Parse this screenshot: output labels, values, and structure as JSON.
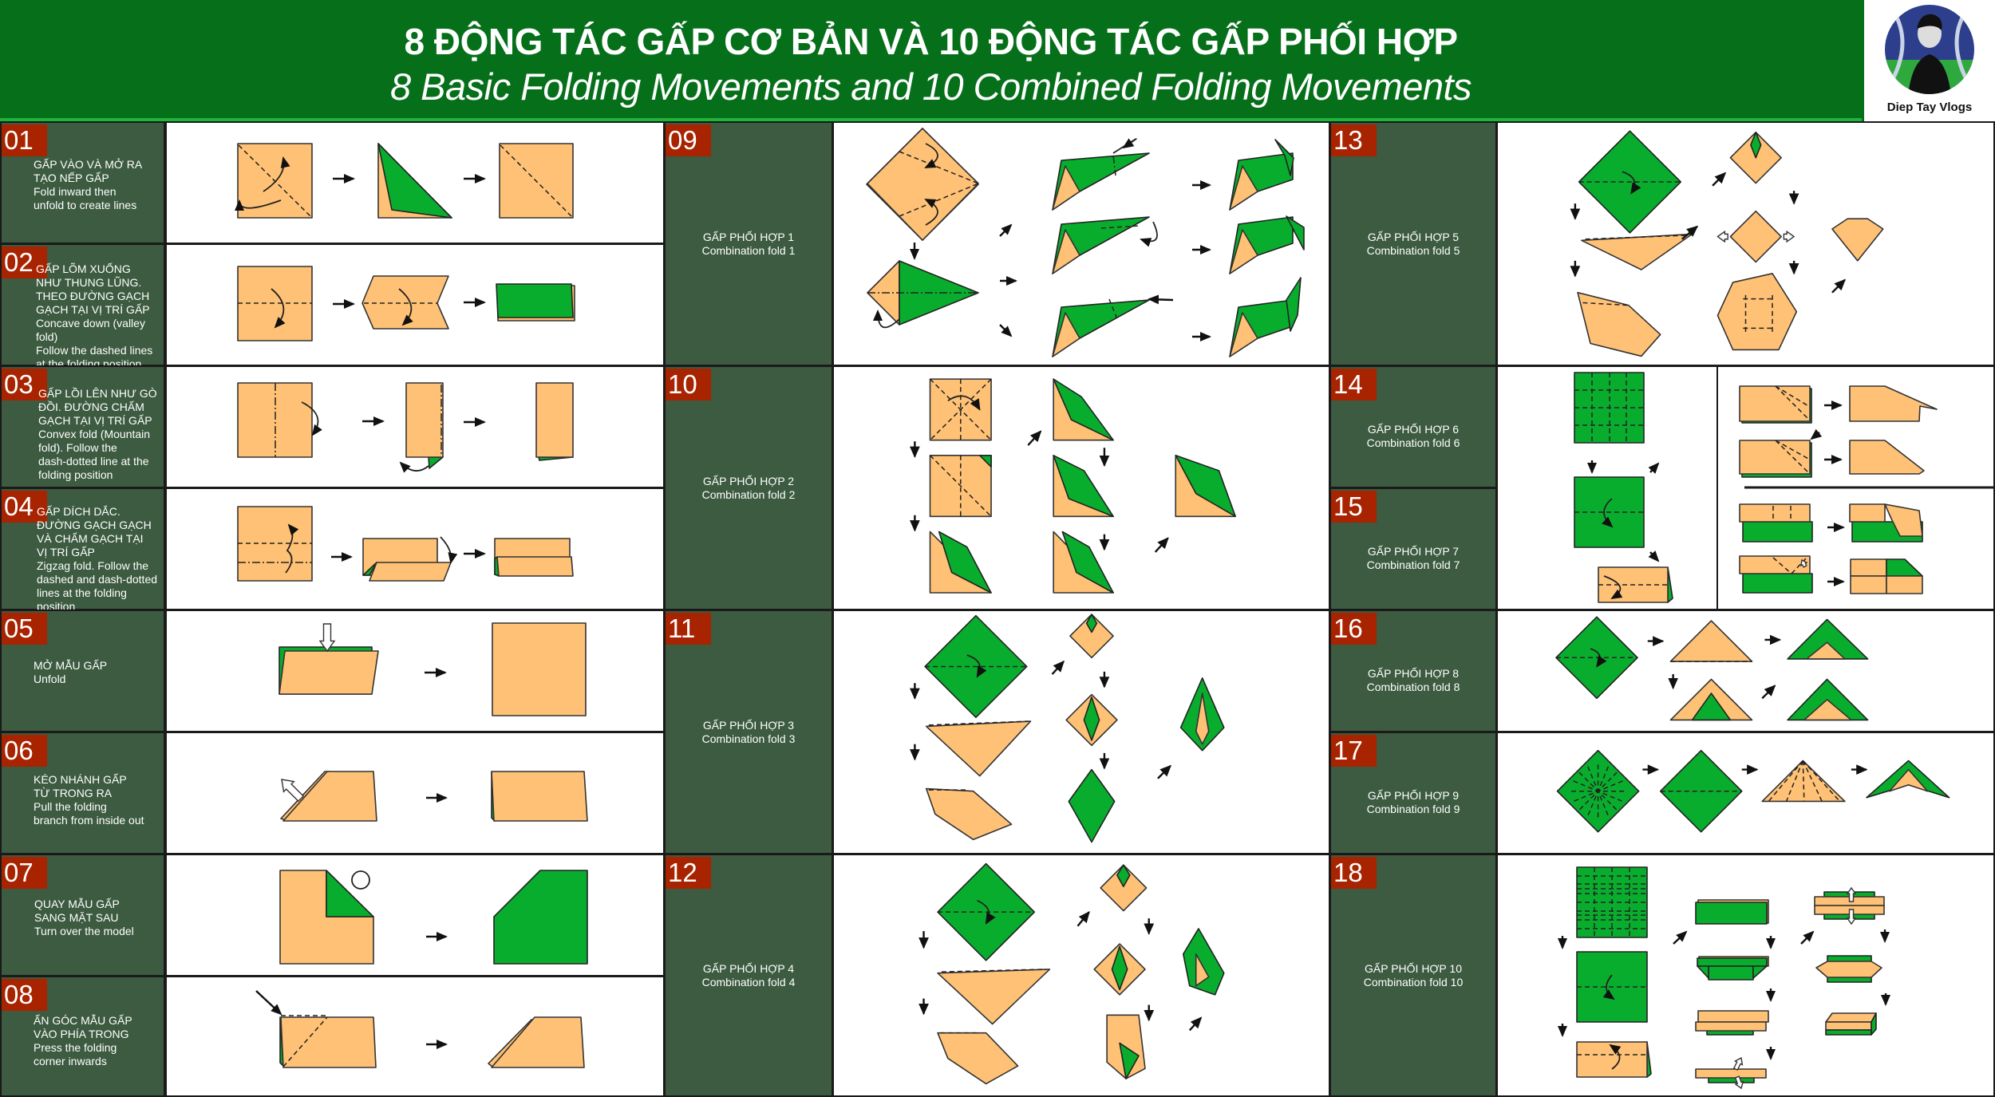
{
  "header": {
    "title": "8 ĐỘNG TÁC GẤP CƠ BẢN VÀ 10 ĐỘNG TÁC GẤP PHỐI HỢP",
    "subtitle": "8 Basic Folding Movements and 10 Combined Folding Movements"
  },
  "logo": {
    "text": "Diep Tay Vlogs"
  },
  "colors": {
    "header_green": "#066f1a",
    "label_bg": "#3c5b40",
    "badge_red": "#a82300",
    "paper_orange": "#ffc175",
    "paper_green": "#09ad2e"
  },
  "basic_steps": [
    {
      "number": "01",
      "text": "GẤP VÀO VÀ MỞ RA\nTẠO NẾP GẤP\nFold inward then\nunfold to create lines"
    },
    {
      "number": "02",
      "text": "GẤP LÕM XUỐNG\nNHƯ THUNG LŨNG.\nTHEO ĐƯỜNG GẠCH\nGẠCH TẠI VỊ TRÍ GẤP\nConcave down (valley fold)\nFollow the dashed lines\nat the folding position"
    },
    {
      "number": "03",
      "text": "GẤP LỒI LÊN NHƯ GÒ\nĐỒI. ĐƯỜNG CHẤM\nGẠCH TẠI VỊ TRÍ GẤP\nConvex fold (Mountain\nfold). Follow the\ndash-dotted line at the\nfolding position"
    },
    {
      "number": "04",
      "text": "GẤP DÍCH DẮC.\nĐƯỜNG GẠCH GẠCH\nVÀ CHẤM GẠCH TẠI\nVỊ TRÍ GẤP\nZigzag fold. Follow the\ndashed and dash-dotted\nlines at the folding position"
    },
    {
      "number": "05",
      "text": "MỞ MẪU GẤP\nUnfold"
    },
    {
      "number": "06",
      "text": "KÉO NHÁNH GẤP\nTỪ TRONG RA\nPull the folding\nbranch from inside out"
    },
    {
      "number": "07",
      "text": "QUAY MẪU GẤP\nSANG MẶT SAU\nTurn over the model"
    },
    {
      "number": "08",
      "text": "ẤN GÓC MẪU GẤP\nVÀO PHÍA TRONG\nPress the folding\ncorner inwards"
    }
  ],
  "combined_steps": [
    {
      "number": "09",
      "text": "GẤP PHỐI HỢP 1\nCombination fold 1"
    },
    {
      "number": "10",
      "text": "GẤP PHỐI HỢP 2\nCombination fold 2"
    },
    {
      "number": "11",
      "text": "GẤP PHỐI HỢP 3\nCombination fold 3"
    },
    {
      "number": "12",
      "text": "GẤP PHỐI HỢP 4\nCombination fold 4"
    },
    {
      "number": "13",
      "text": "GẤP PHỐI HỢP 5\nCombination fold 5"
    },
    {
      "number": "14",
      "text": "GẤP PHỐI HỢP 6\nCombination fold 6"
    },
    {
      "number": "15",
      "text": "GẤP PHỐI HỢP 7\nCombination fold 7"
    },
    {
      "number": "16",
      "text": "GẤP PHỐI HỢP 8\nCombination fold 8"
    },
    {
      "number": "17",
      "text": "GẤP PHỐI HỢP 9\nCombination fold 9"
    },
    {
      "number": "18",
      "text": "GẤP PHỐI HỢP 10\nCombination fold 10"
    }
  ],
  "icons": [
    "step-arrow-icon",
    "fold-direction-arrow-icon",
    "push-arrow-icon",
    "turn-over-icon"
  ]
}
